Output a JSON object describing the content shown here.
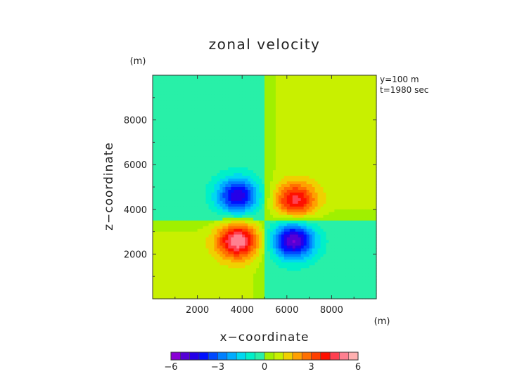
{
  "chart_data": {
    "type": "heatmap",
    "title": "zonal velocity",
    "xlabel": "x−coordinate",
    "ylabel": "z−coordinate",
    "x_unit": "(m)",
    "z_unit": "(m)",
    "xlim": [
      0,
      10000
    ],
    "ylim": [
      0,
      10000
    ],
    "x_ticks": [
      2000,
      4000,
      6000,
      8000
    ],
    "y_ticks": [
      2000,
      4000,
      6000,
      8000
    ],
    "x_tick_labels": [
      "2000",
      "4000",
      "6000",
      "8000"
    ],
    "y_tick_labels": [
      "2000",
      "4000",
      "6000",
      "8000"
    ],
    "annotations": [
      "y=100 m",
      "t=1980 sec"
    ],
    "field_structure": {
      "divide_x": 5000,
      "divide_z": 3500,
      "background": {
        "upper_left": -0.3,
        "upper_right": 0.8,
        "lower_left": 0.8,
        "lower_right": -0.3
      },
      "vortices": [
        {
          "x": 3800,
          "z": 4600,
          "peak": -4.4
        },
        {
          "x": 6400,
          "z": 4400,
          "peak": 3.6
        },
        {
          "x": 3800,
          "z": 2600,
          "peak": 4.6
        },
        {
          "x": 6300,
          "z": 2600,
          "peak": -5.2
        }
      ]
    },
    "colorbar": {
      "min": -6,
      "max": 6,
      "tick_values": [
        -6,
        -3,
        0,
        3,
        6
      ],
      "tick_labels": [
        "−6",
        "−3",
        "0",
        "3",
        "6"
      ],
      "colors": [
        "#8a00d6",
        "#5500d6",
        "#2500e8",
        "#0010ff",
        "#0048ff",
        "#0080ff",
        "#00acff",
        "#00d8f0",
        "#00f0c8",
        "#28f0a8",
        "#a0f000",
        "#c8f000",
        "#f0d000",
        "#ffa000",
        "#ff7000",
        "#ff4000",
        "#ff1000",
        "#ff4050",
        "#ff8090",
        "#ffb0b0"
      ]
    }
  }
}
